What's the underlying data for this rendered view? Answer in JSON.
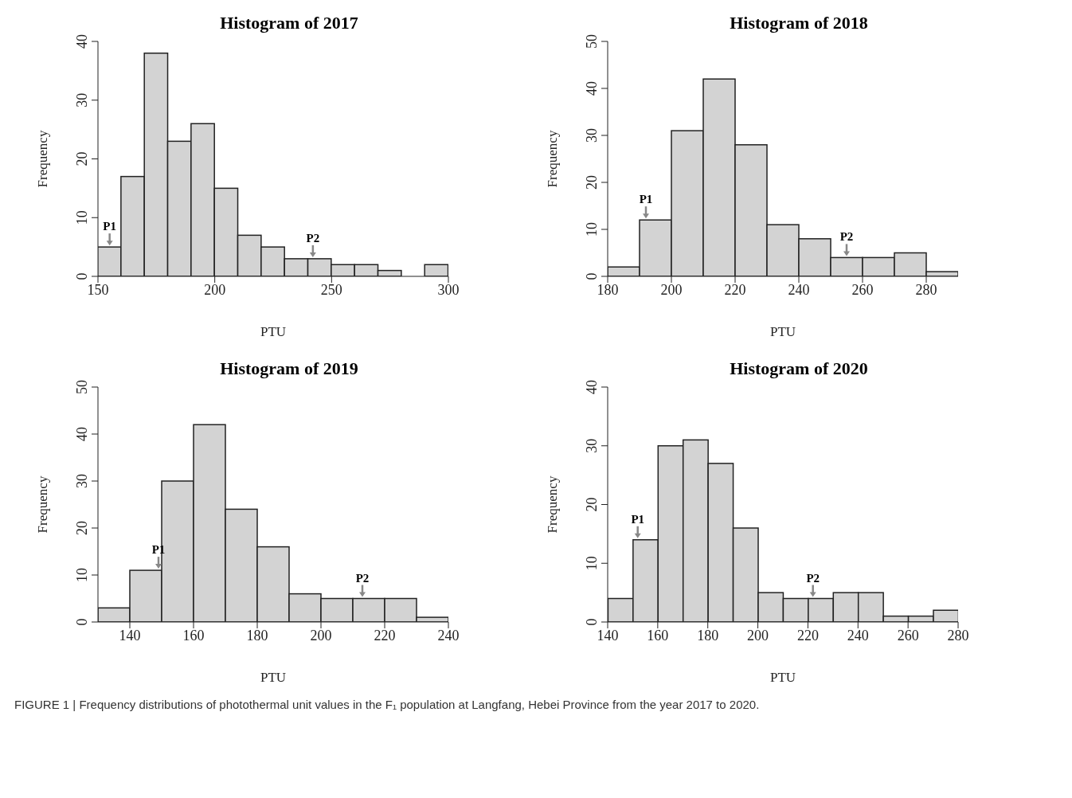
{
  "chart_data": [
    {
      "type": "histogram",
      "title": "Histogram of 2017",
      "xlabel": "PTU",
      "ylabel": "Frequency",
      "color": "#d3d3d3",
      "bins": [
        150,
        160,
        170,
        180,
        190,
        200,
        210,
        220,
        230,
        240,
        250,
        260,
        270,
        280,
        290,
        300
      ],
      "values": [
        5,
        17,
        38,
        23,
        26,
        15,
        7,
        5,
        3,
        3,
        2,
        2,
        1,
        0,
        2
      ],
      "xlim": [
        150,
        300
      ],
      "xticks": [
        150,
        200,
        250,
        300
      ],
      "ylim": [
        0,
        40
      ],
      "yticks": [
        0,
        10,
        20,
        30,
        40
      ],
      "annotations": [
        {
          "text": "P1",
          "x": 155,
          "y": 5
        },
        {
          "text": "P2",
          "x": 242,
          "y": 3
        },
        "FIGURE 1 | Frequency distributions of photothermal unit values in the F₁ population at Langfang, Hebei Province from the year 2017 to 2020."
      ]
    },
    {
      "type": "histogram",
      "title": "Histogram of 2018",
      "xlabel": "PTU",
      "ylabel": "Frequency",
      "color": "#d3d3d3",
      "bins": [
        180,
        190,
        200,
        210,
        220,
        230,
        240,
        250,
        260,
        270,
        280,
        290
      ],
      "values": [
        2,
        12,
        31,
        42,
        28,
        11,
        8,
        4,
        4,
        5,
        1
      ],
      "xlim": [
        180,
        290
      ],
      "xticks": [
        180,
        200,
        220,
        240,
        260,
        280
      ],
      "ylim": [
        0,
        50
      ],
      "yticks": [
        0,
        10,
        20,
        30,
        40,
        50
      ],
      "annotations": [
        {
          "text": "P1",
          "x": 192,
          "y": 12
        },
        {
          "text": "P2",
          "x": 255,
          "y": 4
        }
      ]
    },
    {
      "type": "histogram",
      "title": "Histogram of 2019",
      "xlabel": "PTU",
      "ylabel": "Frequency",
      "color": "#d3d3d3",
      "bins": [
        130,
        140,
        150,
        160,
        170,
        180,
        190,
        200,
        210,
        220,
        230,
        240
      ],
      "values": [
        3,
        11,
        30,
        42,
        24,
        16,
        6,
        5,
        5,
        5,
        1
      ],
      "xlim": [
        130,
        240
      ],
      "xticks": [
        140,
        160,
        180,
        200,
        220,
        240
      ],
      "ylim": [
        0,
        50
      ],
      "yticks": [
        0,
        10,
        20,
        30,
        40,
        50
      ],
      "annotations": [
        {
          "text": "P1",
          "x": 149,
          "y": 11
        },
        {
          "text": "P2",
          "x": 213,
          "y": 5
        }
      ]
    },
    {
      "type": "histogram",
      "title": "Histogram of 2020",
      "xlabel": "PTU",
      "ylabel": "Frequency",
      "color": "#d3d3d3",
      "bins": [
        140,
        150,
        160,
        170,
        180,
        190,
        200,
        210,
        220,
        230,
        240,
        250,
        260,
        270,
        280
      ],
      "values": [
        4,
        14,
        30,
        31,
        27,
        16,
        5,
        4,
        4,
        5,
        5,
        1,
        1,
        2
      ],
      "xlim": [
        140,
        280
      ],
      "xticks": [
        140,
        160,
        180,
        200,
        220,
        240,
        260,
        280
      ],
      "ylim": [
        0,
        40
      ],
      "yticks": [
        0,
        10,
        20,
        30,
        40
      ],
      "annotations": [
        {
          "text": "P1",
          "x": 152,
          "y": 14
        },
        {
          "text": "P2",
          "x": 222,
          "y": 4
        }
      ]
    }
  ]
}
